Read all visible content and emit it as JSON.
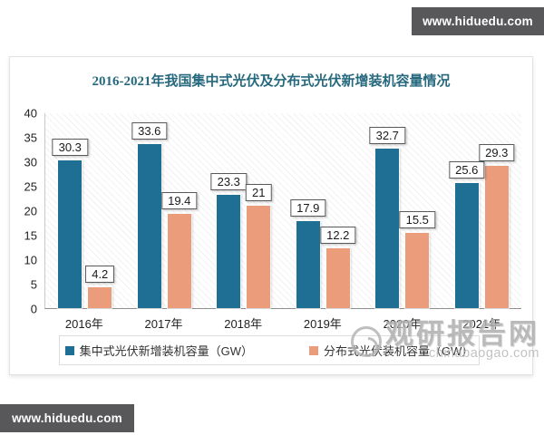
{
  "banners": {
    "top_right": "www.hiduedu.com",
    "bottom_left": "www.hiduedu.com"
  },
  "colors": {
    "banner_background": "#58585a",
    "title_text": "#26697e",
    "series1": "#1f6e93",
    "series2": "#eb9c7b",
    "watermark_gray": "#b0b0b0"
  },
  "chart_data": {
    "type": "bar",
    "title": "2016-2021年我国集中式光伏及分布式光伏新增装机容量情况",
    "categories": [
      "2016年",
      "2017年",
      "2018年",
      "2019年",
      "2020年",
      "2021年"
    ],
    "series": [
      {
        "name": "集中式光伏新增装机容量（GW）",
        "color": "#1f6e93",
        "values": [
          30.3,
          33.6,
          23.3,
          17.9,
          32.7,
          25.6
        ]
      },
      {
        "name": "分布式光伏装机容量（GW）",
        "color": "#eb9c7b",
        "values": [
          4.2,
          19.4,
          21,
          12.2,
          15.5,
          29.3
        ]
      }
    ],
    "xlabel": "",
    "ylabel": "",
    "ylim": [
      0,
      40
    ],
    "yticks": [
      0,
      5,
      10,
      15,
      20,
      25,
      30,
      35,
      40
    ],
    "grid": false,
    "plot_background": "diagonal-hatch",
    "legend_position": "bottom",
    "data_labels": "boxed-above-bars"
  },
  "watermark": {
    "brand": "观研报告网",
    "domain": "chinabaogao.com"
  }
}
